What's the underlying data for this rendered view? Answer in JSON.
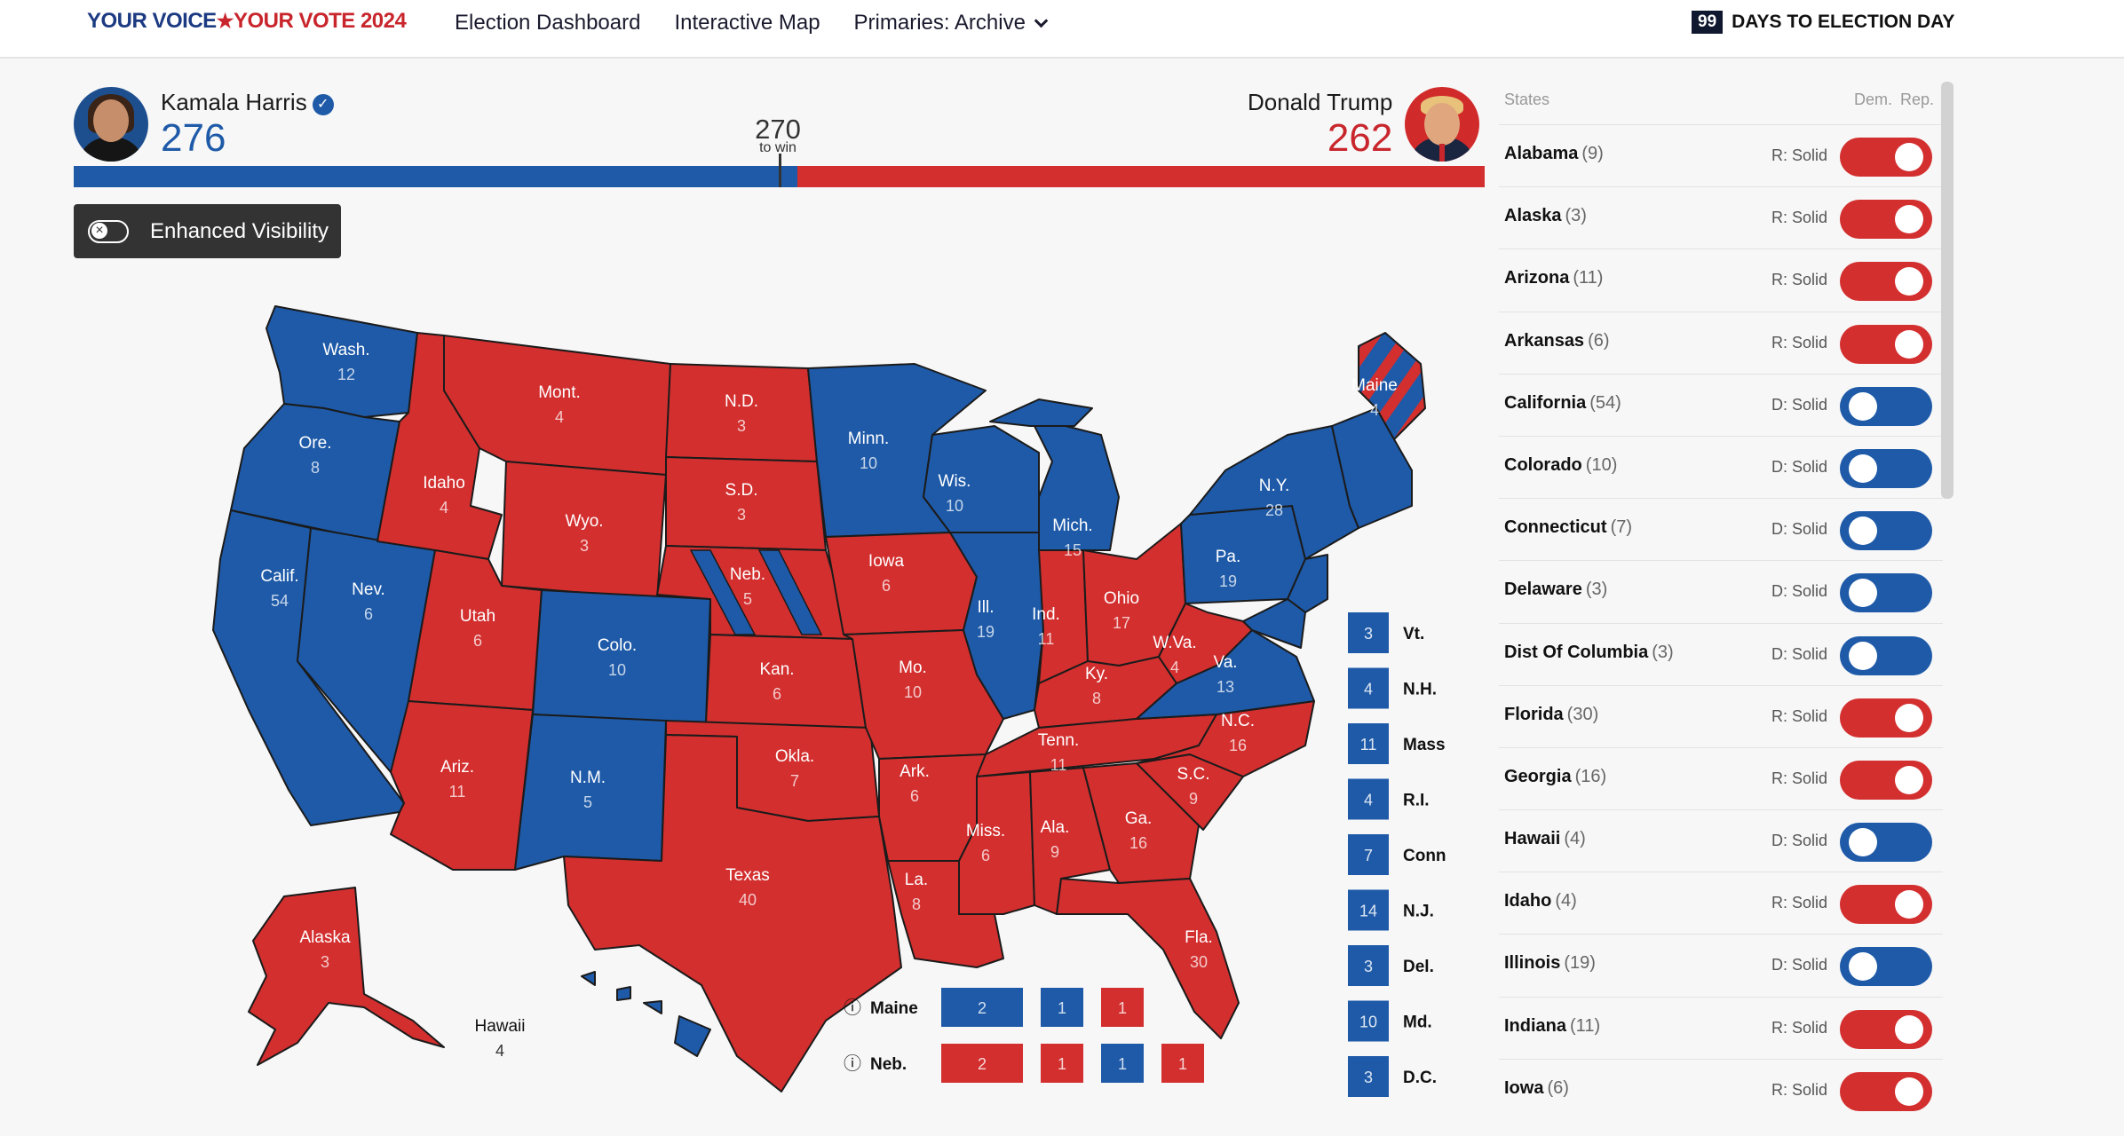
{
  "header": {
    "logo_part1": "YOUR VOICE",
    "logo_star": "★",
    "logo_part2": "YOUR VOTE 2024",
    "nav": [
      "Election Dashboard",
      "Interactive Map",
      "Primaries: Archive"
    ],
    "days_count": "99",
    "days_label": "DAYS TO ELECTION DAY"
  },
  "tally": {
    "dem_name": "Kamala Harris",
    "dem_votes": "276",
    "rep_name": "Donald Trump",
    "rep_votes": "262",
    "win_number": "270",
    "win_label": "to win",
    "total_votes": 538,
    "dem_share": 276,
    "rep_share": 262
  },
  "enhanced_visibility": {
    "label": "Enhanced Visibility",
    "enabled": false
  },
  "colors": {
    "dem": "#1e5aa8",
    "rep": "#d32f2f"
  },
  "map": {
    "states": [
      {
        "abbr": "Wash.",
        "ev": "12",
        "party": "D"
      },
      {
        "abbr": "Ore.",
        "ev": "8",
        "party": "D"
      },
      {
        "abbr": "Calif.",
        "ev": "54",
        "party": "D"
      },
      {
        "abbr": "Nev.",
        "ev": "6",
        "party": "D"
      },
      {
        "abbr": "Idaho",
        "ev": "4",
        "party": "R"
      },
      {
        "abbr": "Mont.",
        "ev": "4",
        "party": "R"
      },
      {
        "abbr": "Wyo.",
        "ev": "3",
        "party": "R"
      },
      {
        "abbr": "Utah",
        "ev": "6",
        "party": "R"
      },
      {
        "abbr": "Ariz.",
        "ev": "11",
        "party": "R"
      },
      {
        "abbr": "Colo.",
        "ev": "10",
        "party": "D"
      },
      {
        "abbr": "N.M.",
        "ev": "5",
        "party": "D"
      },
      {
        "abbr": "N.D.",
        "ev": "3",
        "party": "R"
      },
      {
        "abbr": "S.D.",
        "ev": "3",
        "party": "R"
      },
      {
        "abbr": "Neb.",
        "ev": "5",
        "party": "R"
      },
      {
        "abbr": "Kan.",
        "ev": "6",
        "party": "R"
      },
      {
        "abbr": "Okla.",
        "ev": "7",
        "party": "R"
      },
      {
        "abbr": "Texas",
        "ev": "40",
        "party": "R"
      },
      {
        "abbr": "Minn.",
        "ev": "10",
        "party": "D"
      },
      {
        "abbr": "Iowa",
        "ev": "6",
        "party": "R"
      },
      {
        "abbr": "Mo.",
        "ev": "10",
        "party": "R"
      },
      {
        "abbr": "Ark.",
        "ev": "6",
        "party": "R"
      },
      {
        "abbr": "La.",
        "ev": "8",
        "party": "R"
      },
      {
        "abbr": "Wis.",
        "ev": "10",
        "party": "D"
      },
      {
        "abbr": "Ill.",
        "ev": "19",
        "party": "D"
      },
      {
        "abbr": "Mich.",
        "ev": "15",
        "party": "D"
      },
      {
        "abbr": "Ind.",
        "ev": "11",
        "party": "R"
      },
      {
        "abbr": "Ohio",
        "ev": "17",
        "party": "R"
      },
      {
        "abbr": "Ky.",
        "ev": "8",
        "party": "R"
      },
      {
        "abbr": "Tenn.",
        "ev": "11",
        "party": "R"
      },
      {
        "abbr": "Miss.",
        "ev": "6",
        "party": "R"
      },
      {
        "abbr": "Ala.",
        "ev": "9",
        "party": "R"
      },
      {
        "abbr": "Ga.",
        "ev": "16",
        "party": "R"
      },
      {
        "abbr": "Fla.",
        "ev": "30",
        "party": "R"
      },
      {
        "abbr": "S.C.",
        "ev": "9",
        "party": "R"
      },
      {
        "abbr": "N.C.",
        "ev": "16",
        "party": "R"
      },
      {
        "abbr": "Va.",
        "ev": "13",
        "party": "D"
      },
      {
        "abbr": "W.Va.",
        "ev": "4",
        "party": "R"
      },
      {
        "abbr": "Pa.",
        "ev": "19",
        "party": "D"
      },
      {
        "abbr": "N.Y.",
        "ev": "28",
        "party": "D"
      },
      {
        "abbr": "Maine",
        "ev": "4",
        "party": "D"
      },
      {
        "abbr": "Alaska",
        "ev": "3",
        "party": "R"
      },
      {
        "abbr": "Hawaii",
        "ev": "4",
        "party": "D"
      }
    ],
    "small_states": [
      {
        "ev": "3",
        "label": "Vt."
      },
      {
        "ev": "4",
        "label": "N.H."
      },
      {
        "ev": "11",
        "label": "Mass"
      },
      {
        "ev": "4",
        "label": "R.I."
      },
      {
        "ev": "7",
        "label": "Conn"
      },
      {
        "ev": "14",
        "label": "N.J."
      },
      {
        "ev": "3",
        "label": "Del."
      },
      {
        "ev": "10",
        "label": "Md."
      },
      {
        "ev": "3",
        "label": "D.C."
      }
    ],
    "split_states": [
      {
        "label": "Maine",
        "info": "ⓘ",
        "boxes": [
          {
            "ev": "2",
            "party": "D"
          },
          {
            "ev": "1",
            "party": "D"
          },
          {
            "ev": "1",
            "party": "R"
          }
        ]
      },
      {
        "label": "Neb.",
        "info": "ⓘ",
        "boxes": [
          {
            "ev": "2",
            "party": "R"
          },
          {
            "ev": "1",
            "party": "R"
          },
          {
            "ev": "1",
            "party": "D"
          },
          {
            "ev": "1",
            "party": "R"
          }
        ]
      }
    ]
  },
  "panel": {
    "col_states": "States",
    "col_dem": "Dem.",
    "col_rep": "Rep.",
    "rows": [
      {
        "name": "Alabama",
        "ev": "(9)",
        "rating": "R: Solid",
        "party": "R"
      },
      {
        "name": "Alaska",
        "ev": "(3)",
        "rating": "R: Solid",
        "party": "R"
      },
      {
        "name": "Arizona",
        "ev": "(11)",
        "rating": "R: Solid",
        "party": "R"
      },
      {
        "name": "Arkansas",
        "ev": "(6)",
        "rating": "R: Solid",
        "party": "R"
      },
      {
        "name": "California",
        "ev": "(54)",
        "rating": "D: Solid",
        "party": "D"
      },
      {
        "name": "Colorado",
        "ev": "(10)",
        "rating": "D: Solid",
        "party": "D"
      },
      {
        "name": "Connecticut",
        "ev": "(7)",
        "rating": "D: Solid",
        "party": "D"
      },
      {
        "name": "Delaware",
        "ev": "(3)",
        "rating": "D: Solid",
        "party": "D"
      },
      {
        "name": "Dist Of Columbia",
        "ev": "(3)",
        "rating": "D: Solid",
        "party": "D"
      },
      {
        "name": "Florida",
        "ev": "(30)",
        "rating": "R: Solid",
        "party": "R"
      },
      {
        "name": "Georgia",
        "ev": "(16)",
        "rating": "R: Solid",
        "party": "R"
      },
      {
        "name": "Hawaii",
        "ev": "(4)",
        "rating": "D: Solid",
        "party": "D"
      },
      {
        "name": "Idaho",
        "ev": "(4)",
        "rating": "R: Solid",
        "party": "R"
      },
      {
        "name": "Illinois",
        "ev": "(19)",
        "rating": "D: Solid",
        "party": "D"
      },
      {
        "name": "Indiana",
        "ev": "(11)",
        "rating": "R: Solid",
        "party": "R"
      },
      {
        "name": "Iowa",
        "ev": "(6)",
        "rating": "R: Solid",
        "party": "R"
      }
    ]
  }
}
